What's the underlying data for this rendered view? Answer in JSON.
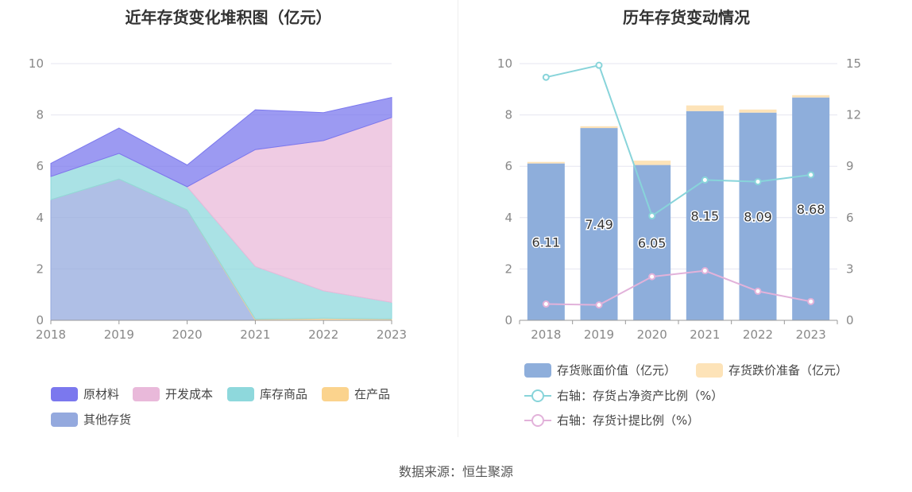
{
  "source": "数据来源：恒生聚源",
  "chart_data": [
    {
      "type": "area",
      "stacked": true,
      "title": "近年存货变化堆积图（亿元）",
      "x": [
        "2018",
        "2019",
        "2020",
        "2021",
        "2022",
        "2023"
      ],
      "ylim": [
        0,
        10
      ],
      "yticks": [
        0,
        2,
        4,
        6,
        8,
        10
      ],
      "grid": true,
      "legend_position": "bottom",
      "series": [
        {
          "name": "其他存货",
          "color": "#94a9de",
          "values": [
            4.7,
            5.5,
            4.3,
            0.0,
            0.0,
            0.0
          ]
        },
        {
          "name": "在产品",
          "color": "#fbd38d",
          "values": [
            0.0,
            0.0,
            0.0,
            0.05,
            0.08,
            0.06
          ]
        },
        {
          "name": "库存商品",
          "color": "#8ed8dc",
          "values": [
            0.9,
            1.0,
            0.9,
            2.05,
            1.07,
            0.64
          ]
        },
        {
          "name": "开发成本",
          "color": "#e9b9da",
          "values": [
            0.0,
            0.0,
            0.0,
            4.55,
            5.85,
            7.2
          ]
        },
        {
          "name": "原材料",
          "color": "#7b78ee",
          "values": [
            0.51,
            0.99,
            0.85,
            1.55,
            1.09,
            0.78
          ]
        }
      ],
      "legend_order": [
        "原材料",
        "开发成本",
        "库存商品",
        "在产品",
        "其他存货"
      ]
    },
    {
      "type": "bar",
      "title": "历年存货变动情况",
      "x": [
        "2018",
        "2019",
        "2020",
        "2021",
        "2022",
        "2023"
      ],
      "ylim": [
        0,
        10
      ],
      "yticks": [
        0,
        2,
        4,
        6,
        8,
        10
      ],
      "y2lim": [
        0,
        15
      ],
      "y2ticks": [
        0,
        3,
        6,
        9,
        12,
        15
      ],
      "grid": true,
      "legend_position": "bottom",
      "bars": [
        {
          "name": "存货账面价值（亿元）",
          "color": "#8eaedb",
          "values": [
            6.11,
            7.49,
            6.05,
            8.15,
            8.09,
            8.68
          ],
          "data_labels": [
            "6.11",
            "7.49",
            "6.05",
            "8.15",
            "8.09",
            "8.68"
          ]
        },
        {
          "name": "存货跌价准备（亿元）",
          "color": "#fde3b8",
          "values": [
            0.06,
            0.07,
            0.17,
            0.22,
            0.12,
            0.09
          ]
        }
      ],
      "lines": [
        {
          "name": "右轴：存货占净资产比例（%）",
          "color": "#88d4da",
          "axis": "right",
          "values": [
            14.2,
            14.9,
            6.1,
            8.2,
            8.1,
            8.5
          ]
        },
        {
          "name": "右轴：存货计提比例（%）",
          "color": "#e2b2da",
          "axis": "right",
          "values": [
            0.95,
            0.9,
            2.55,
            2.9,
            1.7,
            1.1
          ]
        }
      ]
    }
  ]
}
